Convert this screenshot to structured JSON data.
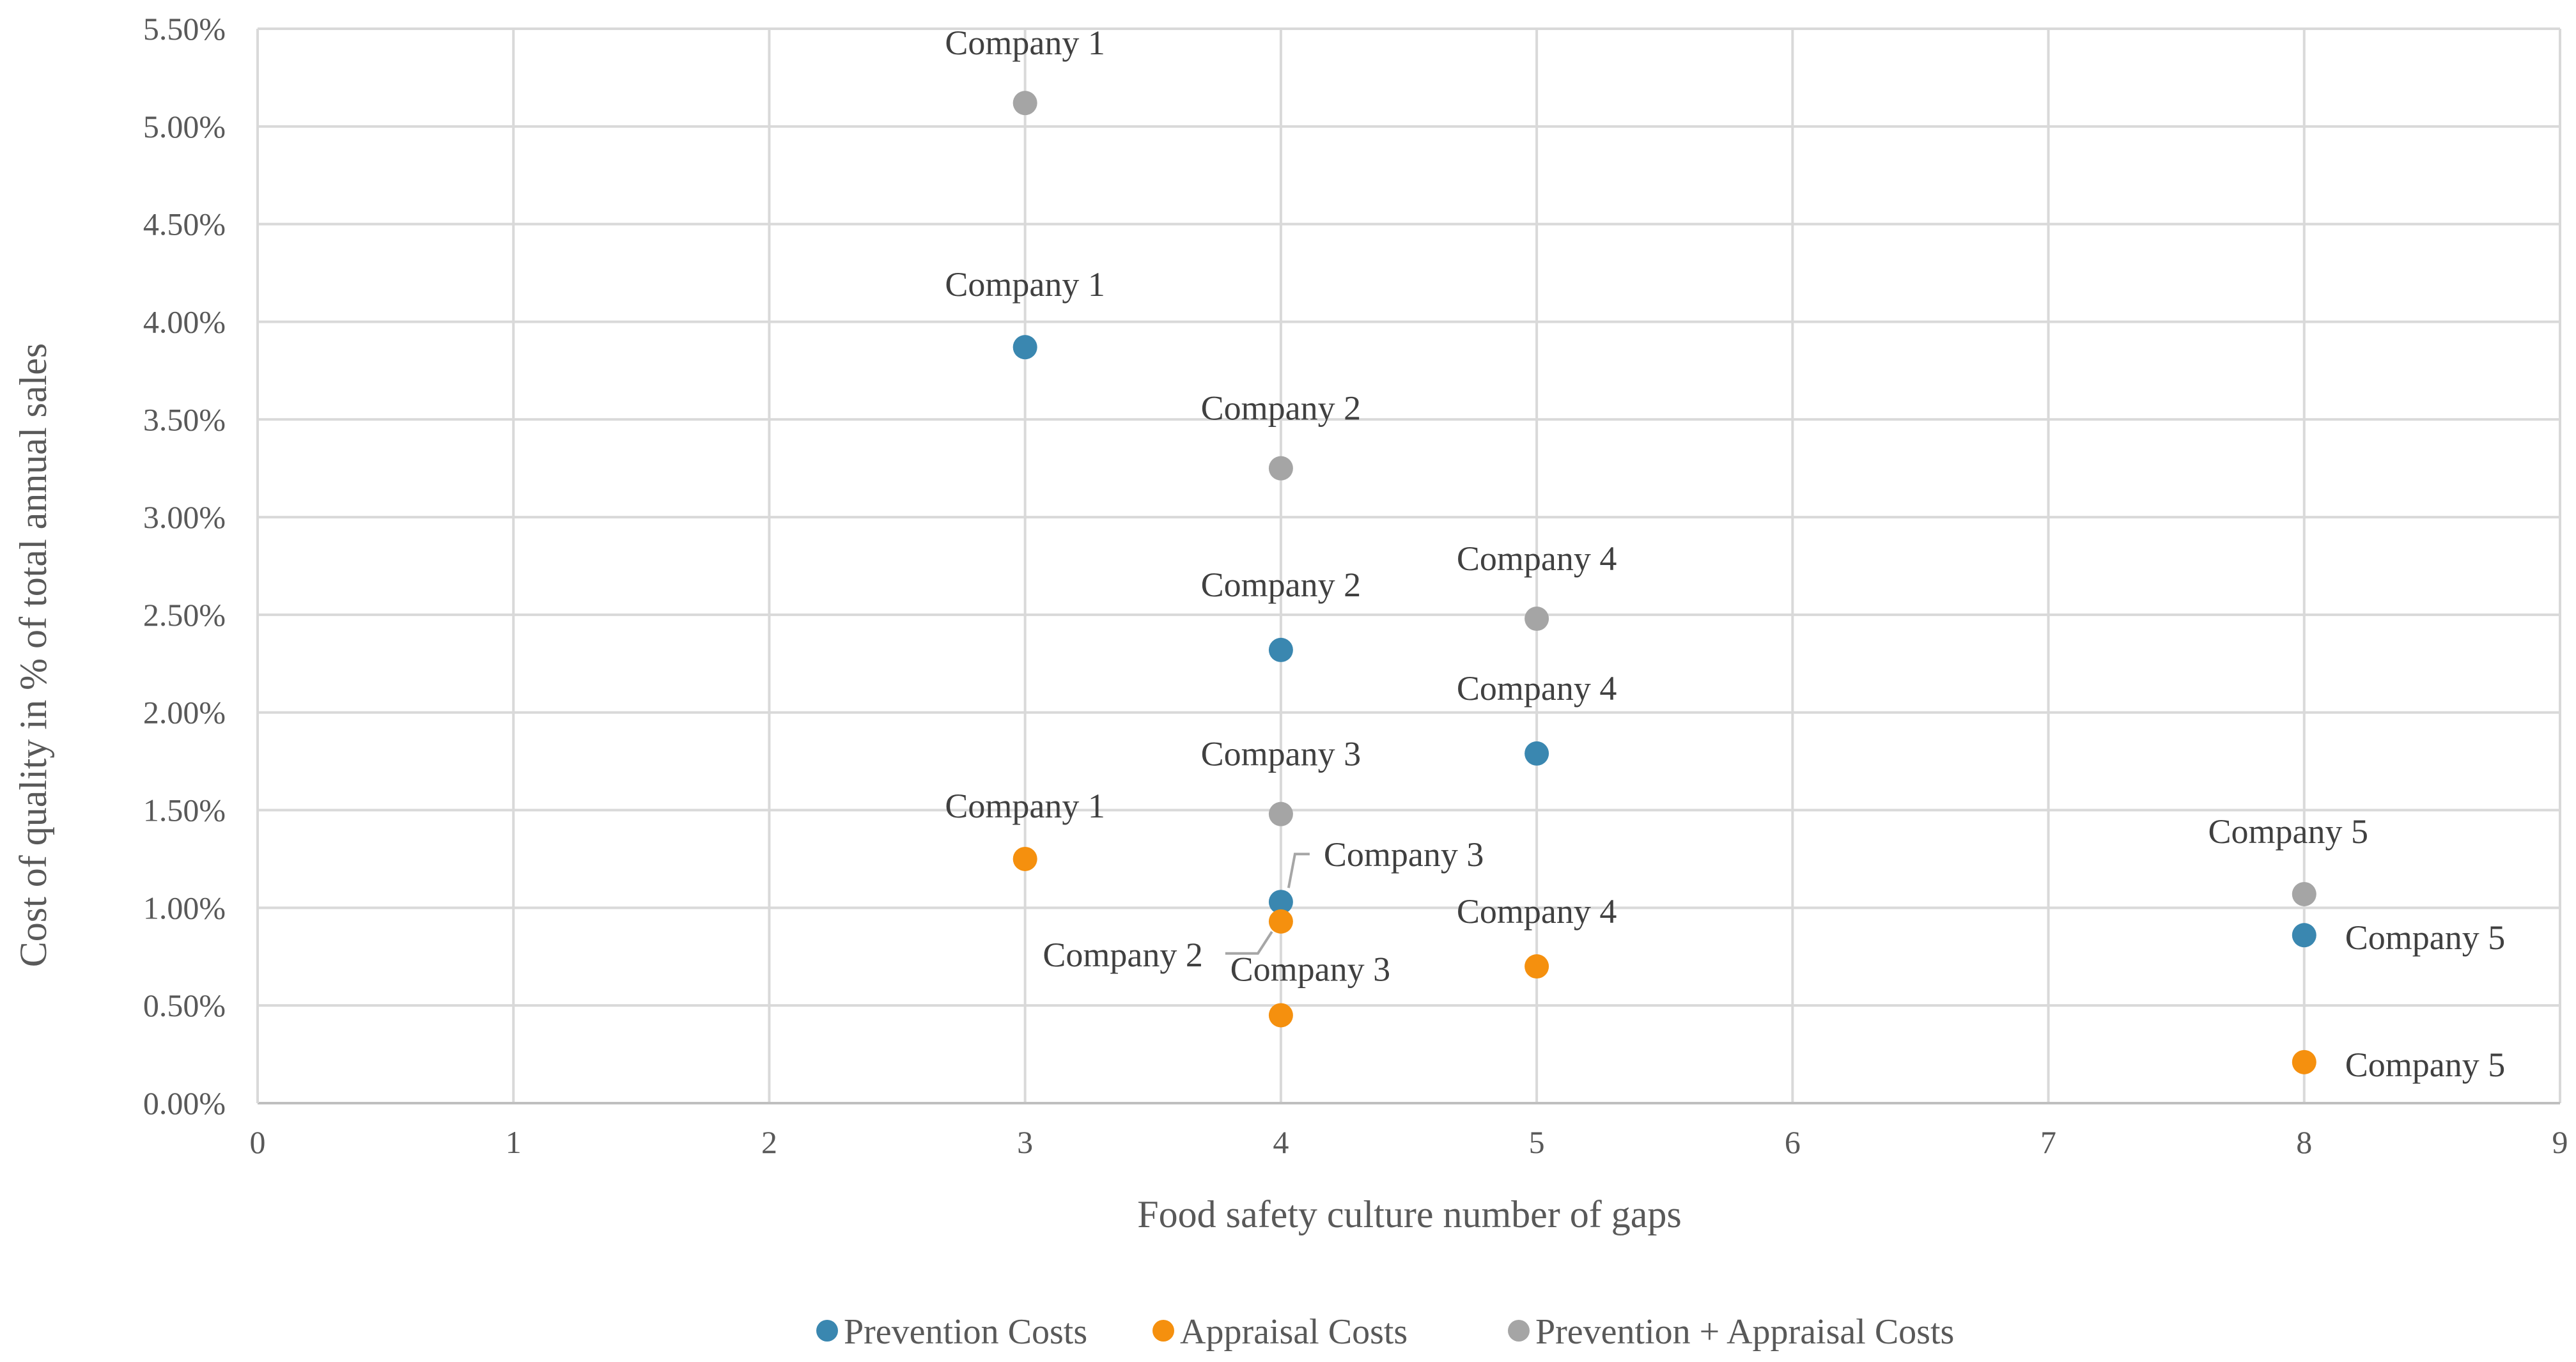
{
  "chart_data": {
    "type": "scatter",
    "xlabel": "Food safety culture number of gaps",
    "ylabel": "Cost of quality in % of total annual sales",
    "xlim": [
      0,
      9
    ],
    "ylim": [
      0,
      0.055
    ],
    "x_ticks": [
      "0",
      "1",
      "2",
      "3",
      "4",
      "5",
      "6",
      "7",
      "8",
      "9"
    ],
    "y_ticks": [
      "0.00%",
      "0.50%",
      "1.00%",
      "1.50%",
      "2.00%",
      "2.50%",
      "3.00%",
      "3.50%",
      "4.00%",
      "4.50%",
      "5.00%",
      "5.50%"
    ],
    "grid": true,
    "legend_position": "bottom",
    "series": [
      {
        "name": "Prevention Costs",
        "color": "#3a87b0",
        "points": [
          {
            "x": 3,
            "y": 0.0387,
            "label": "Company 1"
          },
          {
            "x": 4,
            "y": 0.0232,
            "label": "Company 2"
          },
          {
            "x": 4,
            "y": 0.0103,
            "label": "Company 3"
          },
          {
            "x": 5,
            "y": 0.0179,
            "label": "Company 4"
          },
          {
            "x": 8,
            "y": 0.0086,
            "label": "Company 5"
          }
        ]
      },
      {
        "name": "Appraisal Costs",
        "color": "#f5900e",
        "points": [
          {
            "x": 3,
            "y": 0.0125,
            "label": "Company 1"
          },
          {
            "x": 4,
            "y": 0.0093,
            "label": "Company 2"
          },
          {
            "x": 4,
            "y": 0.0045,
            "label": "Company 3"
          },
          {
            "x": 5,
            "y": 0.007,
            "label": "Company 4"
          },
          {
            "x": 8,
            "y": 0.0021,
            "label": "Company 5"
          }
        ]
      },
      {
        "name": "Prevention + Appraisal Costs",
        "color": "#a5a5a5",
        "points": [
          {
            "x": 3,
            "y": 0.0512,
            "label": "Company 1"
          },
          {
            "x": 4,
            "y": 0.0325,
            "label": "Company 2"
          },
          {
            "x": 4,
            "y": 0.0148,
            "label": "Company 3"
          },
          {
            "x": 5,
            "y": 0.0248,
            "label": "Company 4"
          },
          {
            "x": 8,
            "y": 0.0107,
            "label": "Company 5"
          }
        ]
      }
    ]
  }
}
